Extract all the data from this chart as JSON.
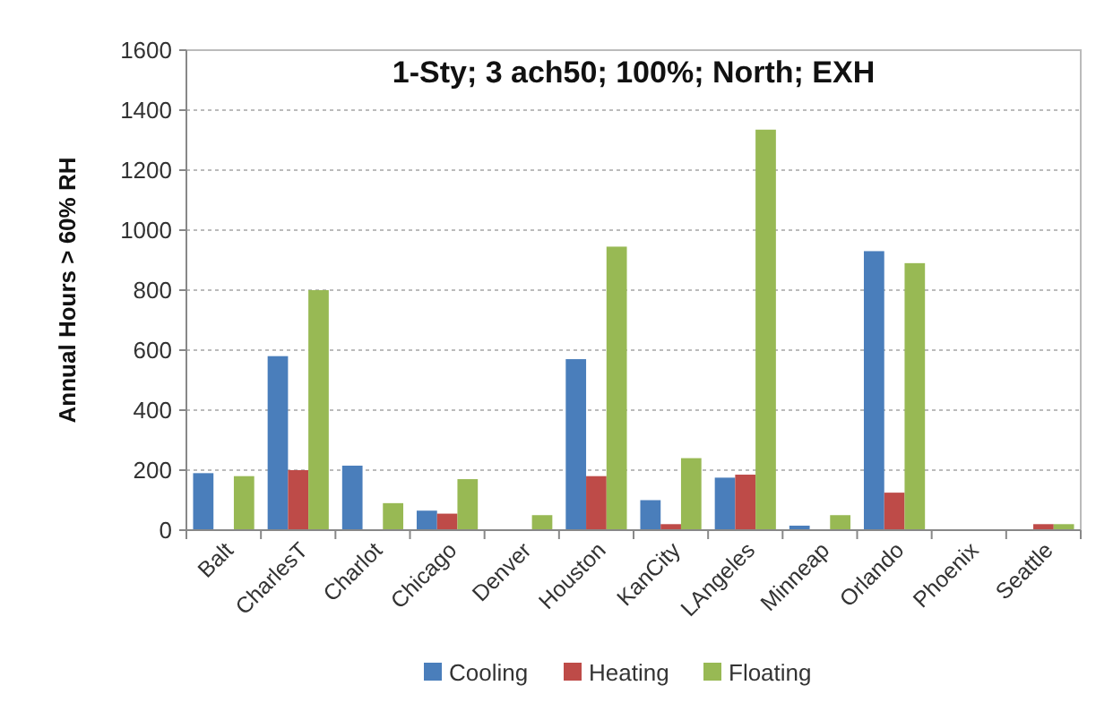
{
  "chart_data": {
    "type": "bar",
    "title": "1-Sty; 3 ach50; 100%; North; EXH",
    "ylabel": "Annual Hours > 60% RH",
    "categories": [
      "Balt",
      "CharlesT",
      "Charlot",
      "Chicago",
      "Denver",
      "Houston",
      "KanCity",
      "LAngeles",
      "Minneap",
      "Orlando",
      "Phoenix",
      "Seattle"
    ],
    "series": [
      {
        "name": "Cooling",
        "color": "#4a7ebb",
        "values": [
          190,
          580,
          215,
          65,
          0,
          570,
          100,
          175,
          15,
          930,
          0,
          0
        ]
      },
      {
        "name": "Heating",
        "color": "#be4b48",
        "values": [
          0,
          200,
          0,
          55,
          0,
          180,
          20,
          185,
          0,
          125,
          0,
          20
        ]
      },
      {
        "name": "Floating",
        "color": "#98b954",
        "values": [
          180,
          800,
          90,
          170,
          50,
          945,
          240,
          1335,
          50,
          890,
          0,
          20
        ]
      }
    ],
    "ylim": [
      0,
      1600
    ],
    "yticks": [
      0,
      200,
      400,
      600,
      800,
      1000,
      1200,
      1400,
      1600
    ],
    "grid": "y",
    "legend": "bottom"
  }
}
